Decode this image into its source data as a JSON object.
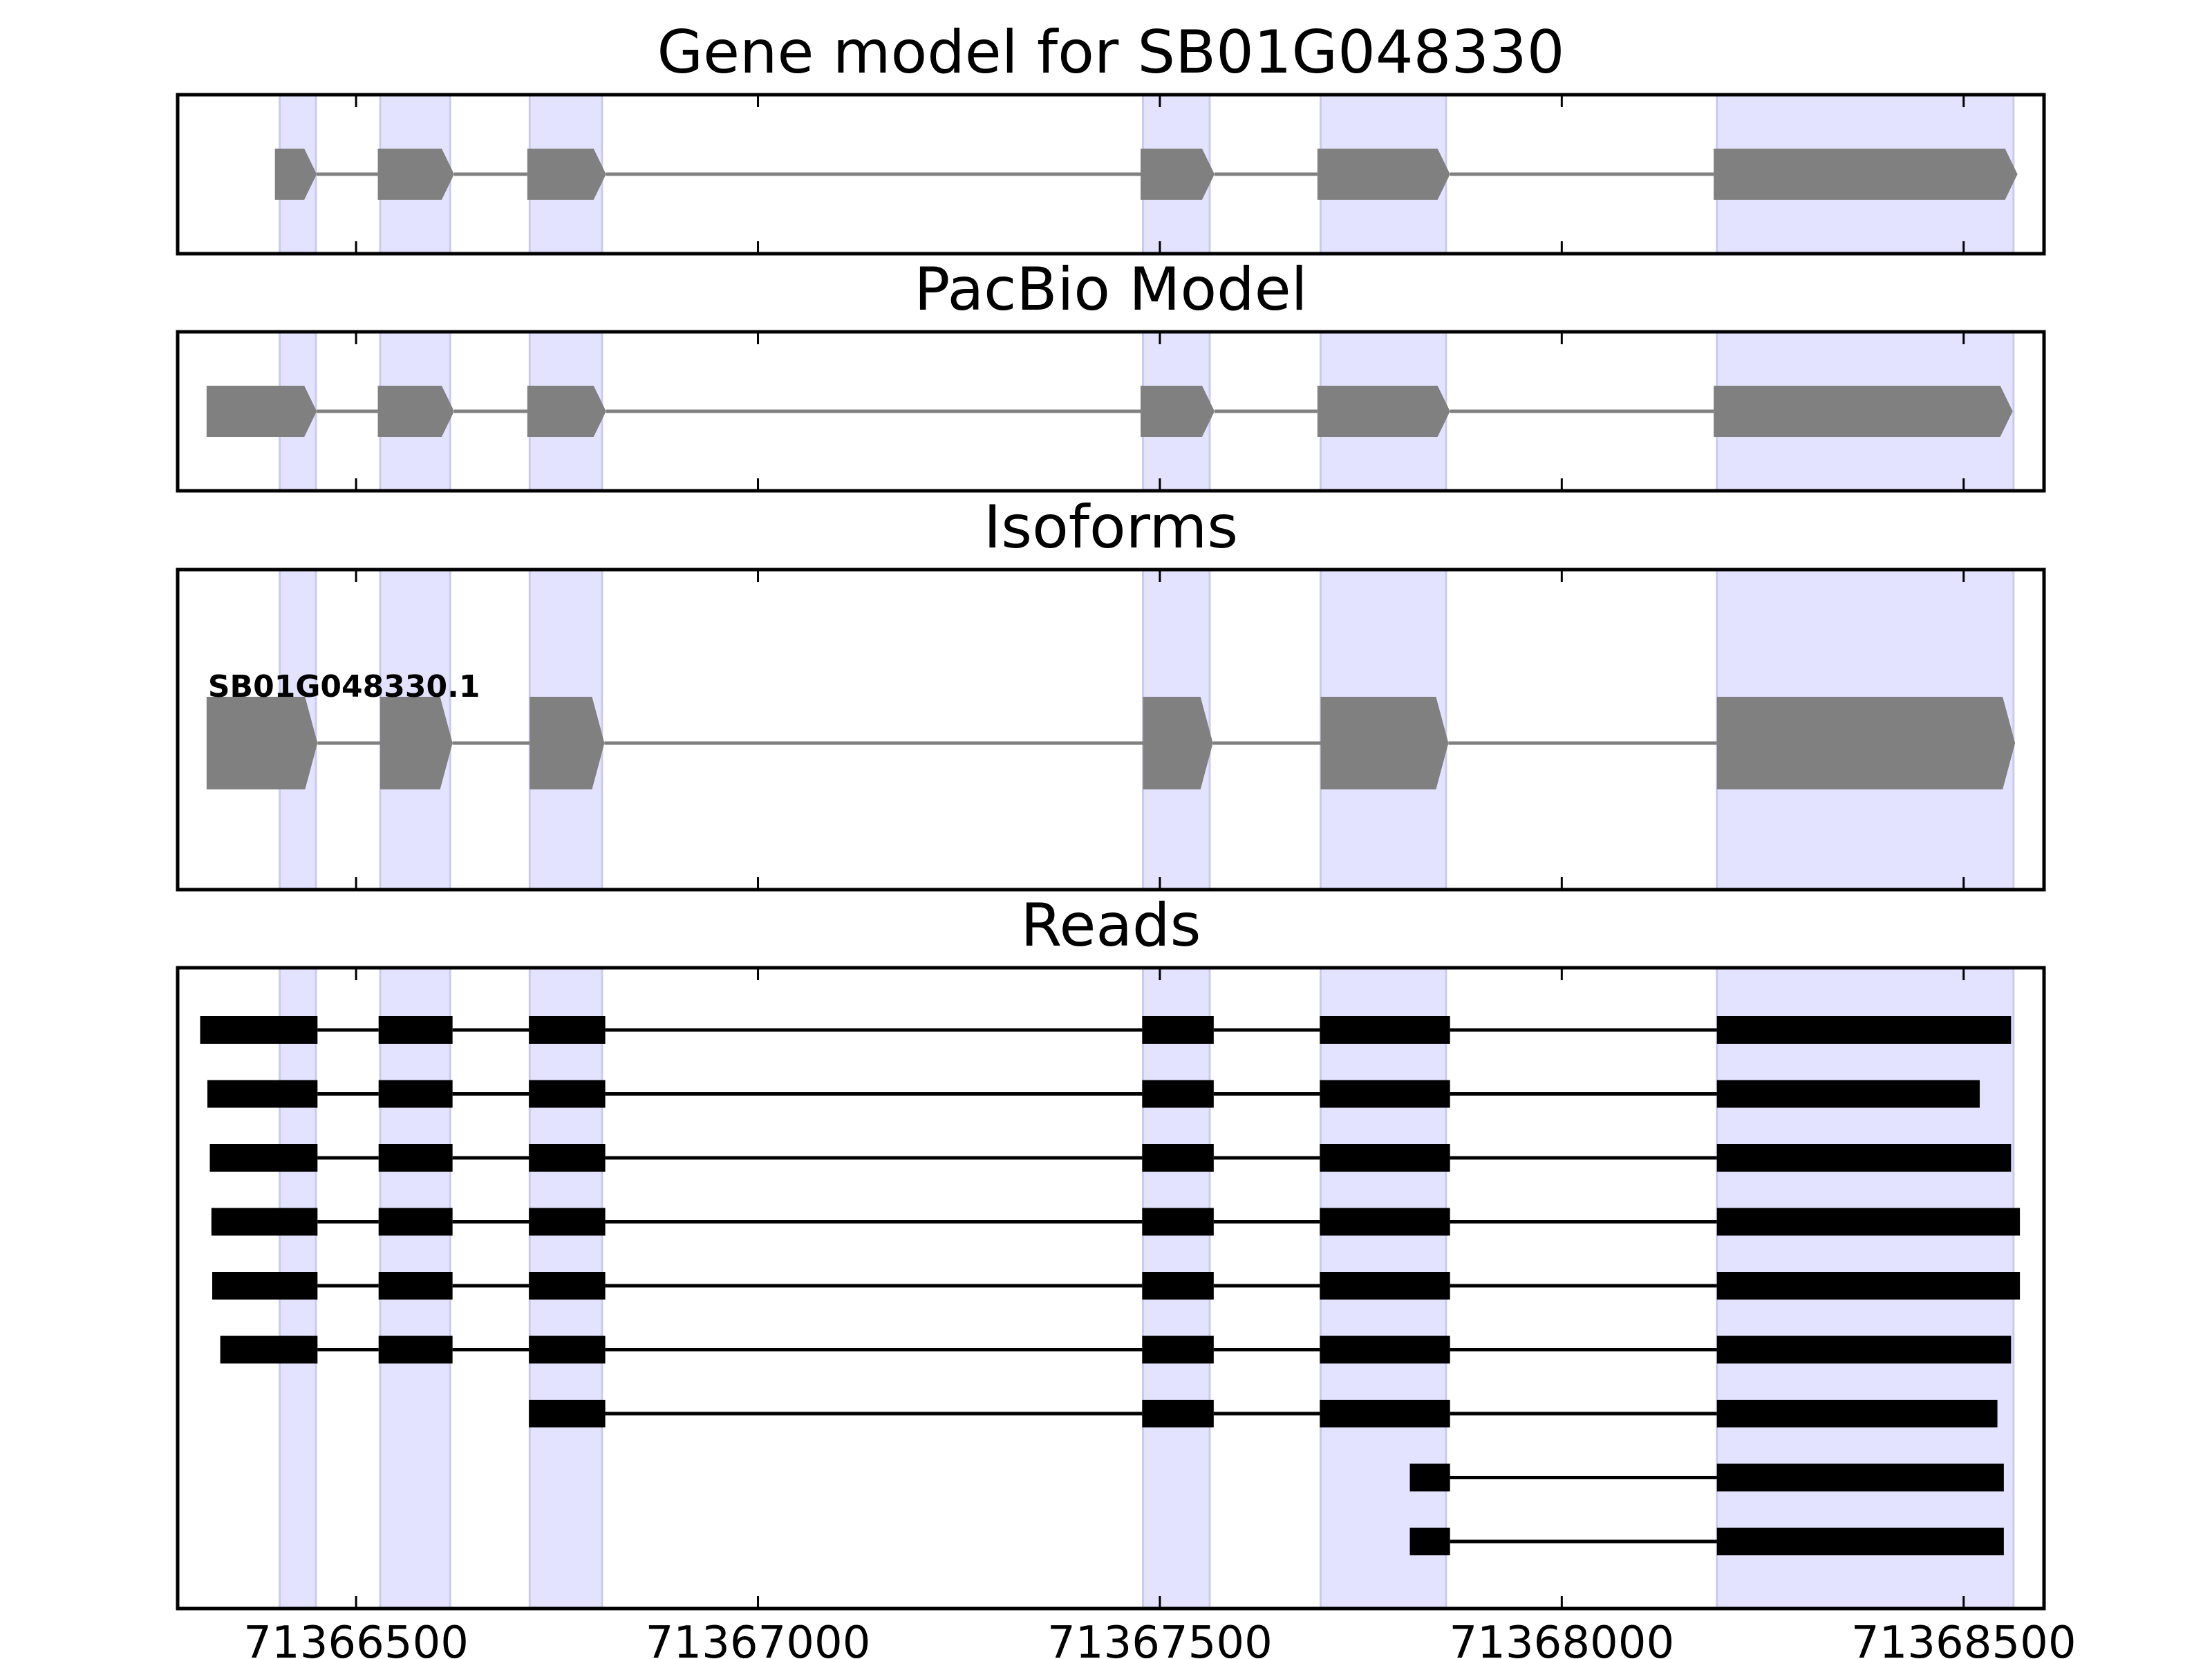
{
  "colors": {
    "band": "#E3E3FF",
    "band_edge": "#CACAEE",
    "model": "#808080",
    "read": "#000000",
    "frame": "#000000"
  },
  "chart_data": {
    "type": "gene-structure",
    "x_ticks": [
      71366500,
      71367000,
      71367500,
      71368000,
      71368500
    ],
    "x_range": [
      71366278,
      71368600
    ],
    "exon_highlights": [
      [
        71366405,
        71366450
      ],
      [
        71366530,
        71366617
      ],
      [
        71366716,
        71366806
      ],
      [
        71367479,
        71367562
      ],
      [
        71367700,
        71367856
      ],
      [
        71368193,
        71368562
      ]
    ],
    "panels": [
      {
        "title": "Gene model for SB01G048330",
        "kind": "model",
        "features": [
          {
            "label": "",
            "exons": [
              [
                71366399,
                71366451
              ],
              [
                71366527,
                71366622
              ],
              [
                71366713,
                71366811
              ],
              [
                71367476,
                71367568
              ],
              [
                71367696,
                71367861
              ],
              [
                71368189,
                71368567
              ]
            ]
          }
        ]
      },
      {
        "title": "PacBio Model",
        "kind": "model",
        "features": [
          {
            "label": "",
            "exons": [
              [
                71366314,
                71366451
              ],
              [
                71366527,
                71366622
              ],
              [
                71366713,
                71366811
              ],
              [
                71367476,
                71367568
              ],
              [
                71367696,
                71367861
              ],
              [
                71368189,
                71368561
              ]
            ]
          }
        ]
      },
      {
        "title": "Isoforms",
        "kind": "model",
        "features": [
          {
            "label": "SB01G048330.1",
            "exons": [
              [
                71366314,
                71366452
              ],
              [
                71366530,
                71366620
              ],
              [
                71366716,
                71366809
              ],
              [
                71367479,
                71367566
              ],
              [
                71367700,
                71367859
              ],
              [
                71368193,
                71368564
              ]
            ]
          }
        ]
      },
      {
        "title": "Reads",
        "kind": "reads",
        "features": [
          {
            "label": "",
            "exons": [
              [
                71366306,
                71366452
              ],
              [
                71366528,
                71366620
              ],
              [
                71366715,
                71366810
              ],
              [
                71367478,
                71367567
              ],
              [
                71367699,
                71367861
              ],
              [
                71368193,
                71368559
              ]
            ]
          },
          {
            "label": "",
            "exons": [
              [
                71366315,
                71366452
              ],
              [
                71366528,
                71366620
              ],
              [
                71366715,
                71366810
              ],
              [
                71367478,
                71367567
              ],
              [
                71367699,
                71367861
              ],
              [
                71368193,
                71368520
              ]
            ]
          },
          {
            "label": "",
            "exons": [
              [
                71366318,
                71366452
              ],
              [
                71366528,
                71366620
              ],
              [
                71366715,
                71366810
              ],
              [
                71367478,
                71367567
              ],
              [
                71367699,
                71367861
              ],
              [
                71368193,
                71368559
              ]
            ]
          },
          {
            "label": "",
            "exons": [
              [
                71366320,
                71366452
              ],
              [
                71366528,
                71366620
              ],
              [
                71366715,
                71366810
              ],
              [
                71367478,
                71367567
              ],
              [
                71367699,
                71367861
              ],
              [
                71368193,
                71368570
              ]
            ]
          },
          {
            "label": "",
            "exons": [
              [
                71366321,
                71366452
              ],
              [
                71366528,
                71366620
              ],
              [
                71366715,
                71366810
              ],
              [
                71367478,
                71367567
              ],
              [
                71367699,
                71367861
              ],
              [
                71368193,
                71368570
              ]
            ]
          },
          {
            "label": "",
            "exons": [
              [
                71366331,
                71366452
              ],
              [
                71366528,
                71366620
              ],
              [
                71366715,
                71366810
              ],
              [
                71367478,
                71367567
              ],
              [
                71367699,
                71367861
              ],
              [
                71368193,
                71368559
              ]
            ]
          },
          {
            "label": "",
            "exons": [
              [
                71366715,
                71366810
              ],
              [
                71367478,
                71367567
              ],
              [
                71367699,
                71367861
              ],
              [
                71368193,
                71368542
              ]
            ]
          },
          {
            "label": "",
            "exons": [
              [
                71367811,
                71367861
              ],
              [
                71368193,
                71368550
              ]
            ]
          },
          {
            "label": "",
            "exons": [
              [
                71367811,
                71367861
              ],
              [
                71368193,
                71368550
              ]
            ]
          }
        ]
      }
    ]
  }
}
